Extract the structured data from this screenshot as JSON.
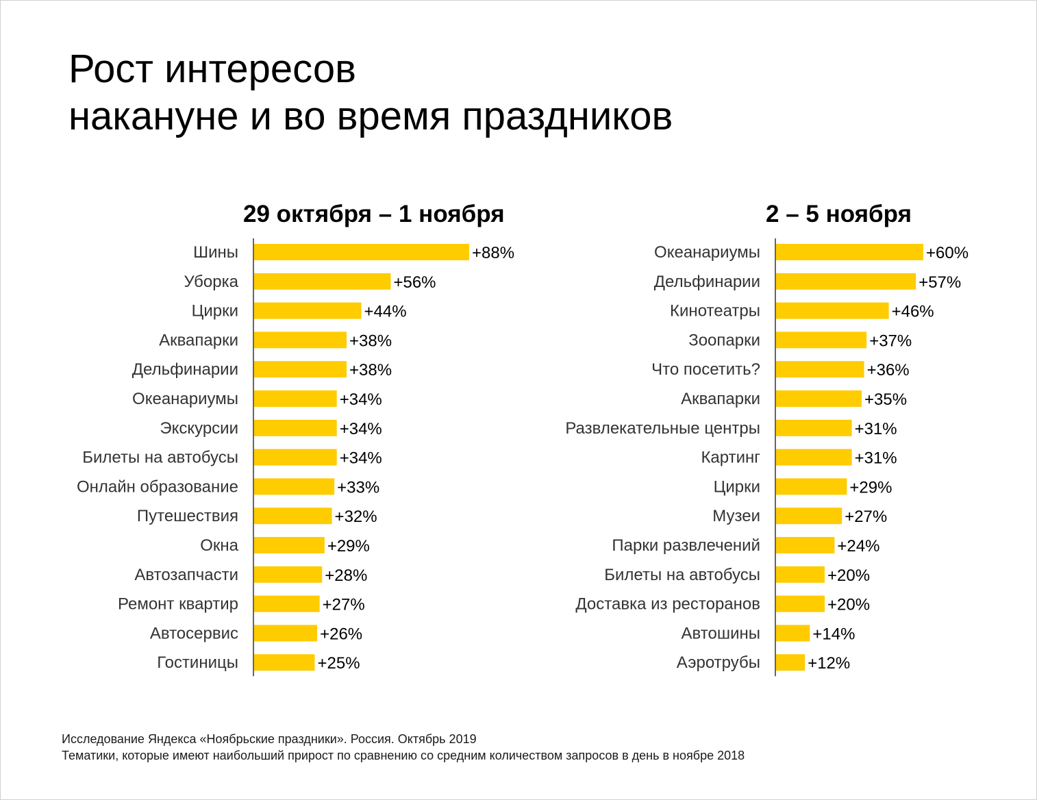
{
  "title_lines": [
    "Рост интересов",
    "накануне и во время праздников"
  ],
  "colors": {
    "bar": "#FFCC00",
    "axis": "#666666"
  },
  "chart_data": [
    {
      "type": "bar",
      "orientation": "horizontal",
      "title": "29 октября – 1 ноября",
      "categories": [
        "Шины",
        "Уборка",
        "Цирки",
        "Аквапарки",
        "Дельфинарии",
        "Океанариумы",
        "Экскурсии",
        "Билеты на автобусы",
        "Онлайн образование",
        "Путешествия",
        "Окна",
        "Автозапчасти",
        "Ремонт квартир",
        "Автосервис",
        "Гостиницы"
      ],
      "values": [
        88,
        56,
        44,
        38,
        38,
        34,
        34,
        34,
        33,
        32,
        29,
        28,
        27,
        26,
        25
      ],
      "labels": [
        "+88%",
        "+56%",
        "+44%",
        "+38%",
        "+38%",
        "+34%",
        "+34%",
        "+34%",
        "+33%",
        "+32%",
        "+29%",
        "+28%",
        "+27%",
        "+26%",
        "+25%"
      ],
      "xlim": [
        0,
        100
      ]
    },
    {
      "type": "bar",
      "orientation": "horizontal",
      "title": "2 – 5 ноября",
      "categories": [
        "Океанариумы",
        "Дельфинарии",
        "Кинотеатры",
        "Зоопарки",
        "Что посетить?",
        "Аквапарки",
        "Развлекательные центры",
        "Картинг",
        "Цирки",
        "Музеи",
        "Парки развлечений",
        "Билеты на автобусы",
        "Доставка из ресторанов",
        "Автошины",
        "Аэротрубы"
      ],
      "values": [
        60,
        57,
        46,
        37,
        36,
        35,
        31,
        31,
        29,
        27,
        24,
        20,
        20,
        14,
        12
      ],
      "labels": [
        "+60%",
        "+57%",
        "+46%",
        "+37%",
        "+36%",
        "+35%",
        "+31%",
        "+31%",
        "+29%",
        "+27%",
        "+24%",
        "+20%",
        "+20%",
        "+14%",
        "+12%"
      ],
      "xlim": [
        0,
        100
      ]
    }
  ],
  "footer": {
    "line1": "Исследование Яндекса «Ноябрьские праздники». Россия. Октябрь 2019",
    "line2": "Тематики, которые имеют наибольший прирост по сравнению со средним количеством запросов в день в ноябре 2018"
  }
}
